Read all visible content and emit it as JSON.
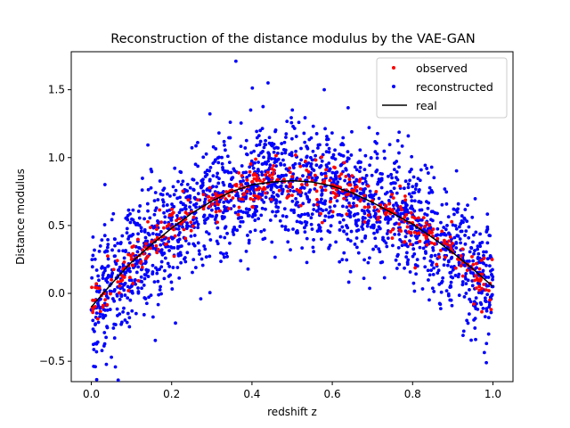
{
  "chart_data": {
    "type": "scatter",
    "title": "Reconstruction of the distance modulus by the VAE-GAN",
    "xlabel": "redshift z",
    "ylabel": "Distance modulus",
    "xlim": [
      -0.05,
      1.05
    ],
    "ylim": [
      -0.65,
      1.78
    ],
    "xticks": [
      0.0,
      0.2,
      0.4,
      0.6,
      0.8,
      1.0
    ],
    "xtick_labels": [
      "0.0",
      "0.2",
      "0.4",
      "0.6",
      "0.8",
      "1.0"
    ],
    "yticks": [
      -0.5,
      0.0,
      0.5,
      1.0,
      1.5
    ],
    "ytick_labels": [
      "−0.5",
      "0.0",
      "0.5",
      "1.0",
      "1.5"
    ],
    "grid": false,
    "legend_position": "top-right",
    "real_curve": {
      "name": "real",
      "color": "#000000",
      "x": [
        0.0,
        0.05,
        0.1,
        0.15,
        0.2,
        0.25,
        0.3,
        0.35,
        0.4,
        0.45,
        0.5,
        0.55,
        0.6,
        0.65,
        0.7,
        0.75,
        0.8,
        0.85,
        0.9,
        0.95,
        1.0
      ],
      "y": [
        -0.1,
        0.07,
        0.23,
        0.36,
        0.48,
        0.59,
        0.68,
        0.75,
        0.8,
        0.82,
        0.83,
        0.82,
        0.79,
        0.74,
        0.67,
        0.59,
        0.51,
        0.41,
        0.3,
        0.18,
        0.05
      ]
    },
    "series": [
      {
        "name": "observed",
        "color": "#ff0000",
        "marker_note": "approx 400 points scattered tightly around the real curve (spread ~0.12)",
        "x": [
          0.01,
          0.03,
          0.05,
          0.08,
          0.1,
          0.12,
          0.15,
          0.18,
          0.2,
          0.22,
          0.25,
          0.28,
          0.3,
          0.33,
          0.35,
          0.38,
          0.4,
          0.42,
          0.45,
          0.48,
          0.5,
          0.52,
          0.55,
          0.58,
          0.6,
          0.62,
          0.65,
          0.68,
          0.7,
          0.72,
          0.75,
          0.78,
          0.8,
          0.82,
          0.85,
          0.88,
          0.9,
          0.92,
          0.95,
          0.97,
          0.99
        ],
        "y": [
          -0.05,
          0.0,
          0.1,
          0.18,
          0.25,
          0.28,
          0.38,
          0.42,
          0.48,
          0.55,
          0.6,
          0.64,
          0.7,
          0.72,
          0.76,
          0.78,
          0.82,
          0.83,
          0.85,
          0.84,
          0.86,
          0.84,
          0.83,
          0.81,
          0.8,
          0.78,
          0.75,
          0.72,
          0.68,
          0.65,
          0.6,
          0.56,
          0.52,
          0.48,
          0.42,
          0.38,
          0.3,
          0.25,
          0.18,
          0.1,
          0.02
        ]
      },
      {
        "name": "reconstructed",
        "color": "#0000ff",
        "marker_note": "approx 2000 points with broader scatter around the curve (spread ~0.25)",
        "x": [
          0.0,
          0.02,
          0.05,
          0.08,
          0.1,
          0.15,
          0.2,
          0.25,
          0.3,
          0.35,
          0.4,
          0.45,
          0.5,
          0.55,
          0.6,
          0.65,
          0.7,
          0.75,
          0.8,
          0.85,
          0.9,
          0.95,
          1.0,
          0.36,
          0.44,
          0.58,
          0.01,
          0.05
        ],
        "y": [
          -0.12,
          0.05,
          0.12,
          0.2,
          0.28,
          0.35,
          0.5,
          0.6,
          0.66,
          0.75,
          0.82,
          0.8,
          0.84,
          0.85,
          0.78,
          0.76,
          0.66,
          0.6,
          0.5,
          0.42,
          0.32,
          0.15,
          0.05,
          1.71,
          1.55,
          1.5,
          -0.54,
          -0.47
        ]
      }
    ]
  }
}
